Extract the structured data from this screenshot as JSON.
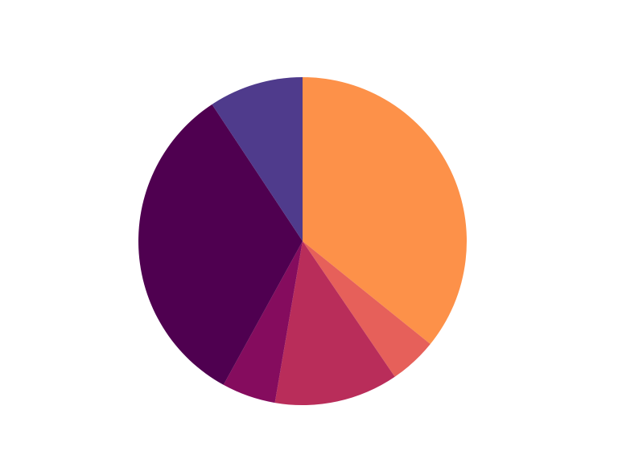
{
  "chart_data": {
    "type": "pie",
    "values": [
      35.8,
      4.7,
      12.2,
      5.3,
      32.7,
      9.3
    ],
    "colors": [
      "#fd9149",
      "#e6605a",
      "#b92d5a",
      "#850c5e",
      "#4f0050",
      "#4f3b8c"
    ]
  }
}
